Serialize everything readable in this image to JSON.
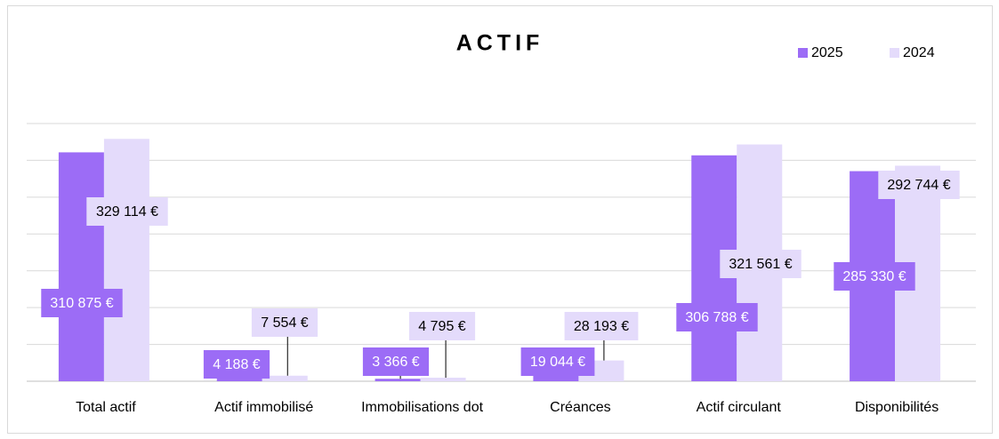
{
  "chart_data": {
    "type": "bar",
    "title": "ACTIF",
    "categories": [
      "Total actif",
      "Actif immobilisé",
      "Immobilisations dot",
      "Créances",
      "Actif circulant",
      "Disponibilités"
    ],
    "series": [
      {
        "name": "2025",
        "color": "#9c6cf6",
        "values": [
          310875,
          4188,
          3366,
          19044,
          306788,
          285330
        ],
        "value_labels": [
          "310 875 €",
          "4 188 €",
          "3 366 €",
          "19 044 €",
          "306 788 €",
          "285 330 €"
        ]
      },
      {
        "name": "2024",
        "color": "#e4dbfb",
        "values": [
          329114,
          7554,
          4795,
          28193,
          321561,
          292744
        ],
        "value_labels": [
          "329 114 €",
          "7 554 €",
          "4 795 €",
          "28 193 €",
          "321 561 €",
          "292 744 €"
        ]
      }
    ],
    "ylim": [
      0,
      350000
    ],
    "yticks": [
      0,
      50000,
      100000,
      150000,
      200000,
      250000,
      300000,
      350000
    ],
    "grid": true,
    "legend": "top-right"
  }
}
